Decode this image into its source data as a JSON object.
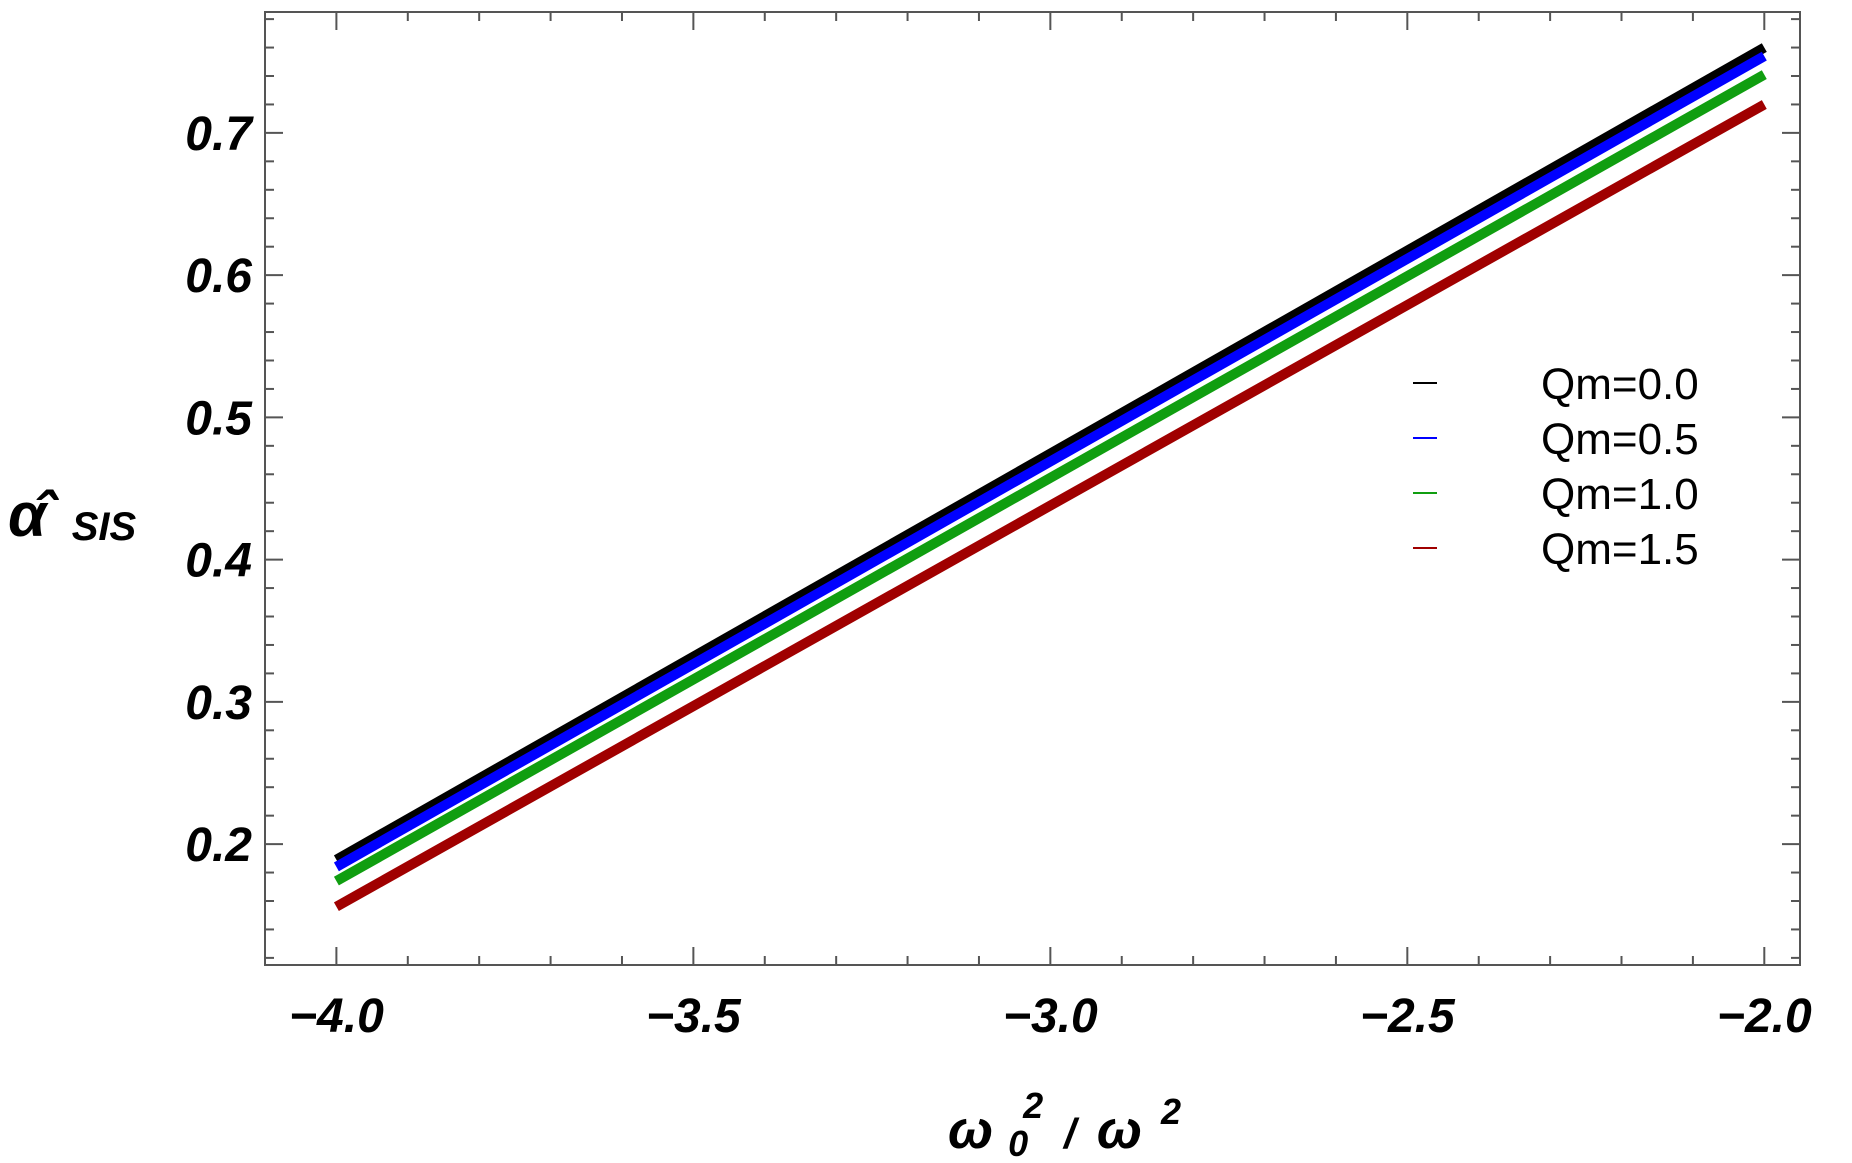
{
  "chart_data": {
    "type": "line",
    "xlabel": {
      "base": "ω",
      "sub": "0",
      "sup1": "2",
      "sep": "/",
      "base2": "ω",
      "sup2": "2"
    },
    "ylabel": {
      "base": "α̂",
      "sub": "SIS"
    },
    "xlim": [
      -4.1,
      -1.95
    ],
    "ylim": [
      0.115,
      0.785
    ],
    "xticks": [
      -4.0,
      -3.5,
      -3.0,
      -2.5,
      -2.0
    ],
    "xtick_labels": [
      "−4.0",
      "−3.5",
      "−3.0",
      "−2.5",
      "−2.0"
    ],
    "yticks": [
      0.2,
      0.3,
      0.4,
      0.5,
      0.6,
      0.7
    ],
    "ytick_labels": [
      "0.2",
      "0.3",
      "0.4",
      "0.5",
      "0.6",
      "0.7"
    ],
    "grid": false,
    "legend_position": "right",
    "series": [
      {
        "name": "Qm=0.0",
        "color": "#000000",
        "x": [
          -4.0,
          -2.0
        ],
        "y": [
          0.189,
          0.76
        ]
      },
      {
        "name": "Qm=0.5",
        "color": "#0000ff",
        "x": [
          -4.0,
          -2.0
        ],
        "y": [
          0.184,
          0.754
        ]
      },
      {
        "name": "Qm=1.0",
        "color": "#109e10",
        "x": [
          -4.0,
          -2.0
        ],
        "y": [
          0.174,
          0.741
        ]
      },
      {
        "name": "Qm=1.5",
        "color": "#a00000",
        "x": [
          -4.0,
          -2.0
        ],
        "y": [
          0.156,
          0.72
        ]
      }
    ]
  }
}
